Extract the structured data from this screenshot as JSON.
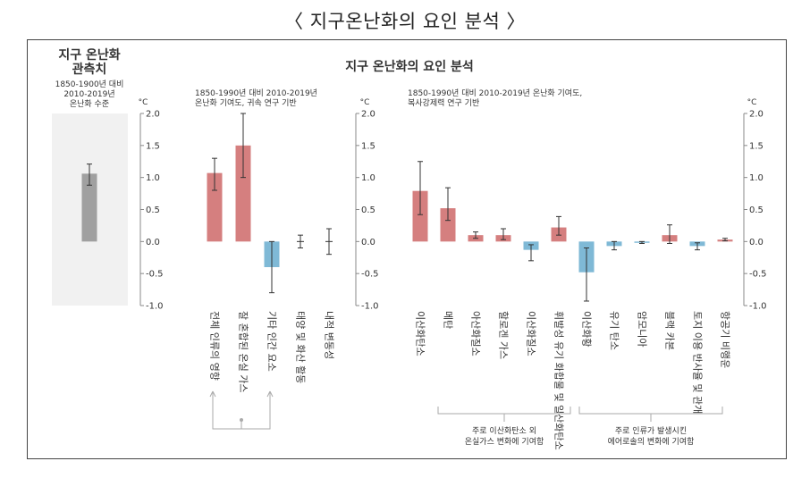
{
  "page": {
    "title": "〈 지구온난화의 요인 분석 〉",
    "figure_title": "지구 온난화의 요인 분석"
  },
  "panels": {
    "observed": {
      "heading": [
        "지구 온난화",
        "관측치"
      ],
      "subtitle": [
        "1850-1900년 대비",
        "2010-2019년",
        "온난화 수준"
      ]
    },
    "attributed": {
      "subtitle": [
        "1850-1990년 대비 2010-2019년",
        "온난화 기여도, 귀속 연구 기반"
      ]
    },
    "radiative": {
      "subtitle": [
        "1850-1990년 대비 2010-2019년 온난화 기여도,",
        "복사강제력 연구 기반"
      ]
    }
  },
  "group_labels": {
    "ghg": [
      "주로 이산화탄소 외",
      "온실가스 변화에 기여함"
    ],
    "aerosol": [
      "주로 인류가 발생시킨",
      "에어로솔의 변화에 기여함"
    ]
  },
  "colors": {
    "positive": "#d57f7f",
    "negative": "#7fb9d6",
    "observed": "#a0a0a0",
    "axis": "#888888",
    "error": "#333333"
  },
  "chart_data": [
    {
      "type": "bar",
      "title": "지구 온난화 관측치",
      "unit": "°C",
      "ylim": [
        -1.0,
        2.0
      ],
      "ticks": [
        "2.0",
        "1.5",
        "1.0",
        "0.5",
        "0.0",
        "-0.5",
        "-1.0"
      ],
      "categories": [
        "관측치"
      ],
      "values": [
        1.06
      ],
      "err_low": [
        0.88
      ],
      "err_high": [
        1.21
      ]
    },
    {
      "type": "bar",
      "title": "온난화 기여도, 귀속 연구 기반",
      "unit": "°C",
      "ylim": [
        -1.0,
        2.0
      ],
      "ticks": [
        "2.0",
        "1.5",
        "1.0",
        "0.5",
        "0.0",
        "-0.5",
        "-1.0"
      ],
      "categories": [
        "전체 인류의 영향",
        "잘 혼합된 온실 가스",
        "기타 인간 요소",
        "태양 및 화산 활동",
        "내적 변동성"
      ],
      "values": [
        1.07,
        1.5,
        -0.4,
        0.0,
        0.0
      ],
      "err_low": [
        0.8,
        1.0,
        -0.8,
        -0.1,
        -0.2
      ],
      "err_high": [
        1.3,
        2.0,
        0.0,
        0.1,
        0.2
      ]
    },
    {
      "type": "bar",
      "title": "온난화 기여도, 복사강제력 연구 기반",
      "unit": "°C",
      "ylim": [
        -1.0,
        2.0
      ],
      "ticks": [
        "2.0",
        "1.5",
        "1.0",
        "0.5",
        "0.0",
        "-0.5",
        "-1.0"
      ],
      "categories": [
        "이산화탄소",
        "메탄",
        "아산화질소",
        "할로겐 가스",
        "이산화질소",
        "휘발성 유기 화합물 및 일산화탄소",
        "이산화황",
        "유기 탄소",
        "암모니아",
        "블랙 카본",
        "토지 이용 반사율 및 관개",
        "항공기 비행운"
      ],
      "values": [
        0.79,
        0.52,
        0.1,
        0.1,
        -0.13,
        0.22,
        -0.48,
        -0.07,
        -0.02,
        0.1,
        -0.07,
        0.03
      ],
      "err_low": [
        0.42,
        0.33,
        0.05,
        0.03,
        -0.3,
        0.1,
        -0.93,
        -0.13,
        -0.03,
        -0.03,
        -0.13,
        0.01
      ],
      "err_high": [
        1.25,
        0.84,
        0.15,
        0.2,
        -0.05,
        0.39,
        -0.1,
        0.0,
        0.0,
        0.26,
        -0.02,
        0.05
      ]
    }
  ]
}
